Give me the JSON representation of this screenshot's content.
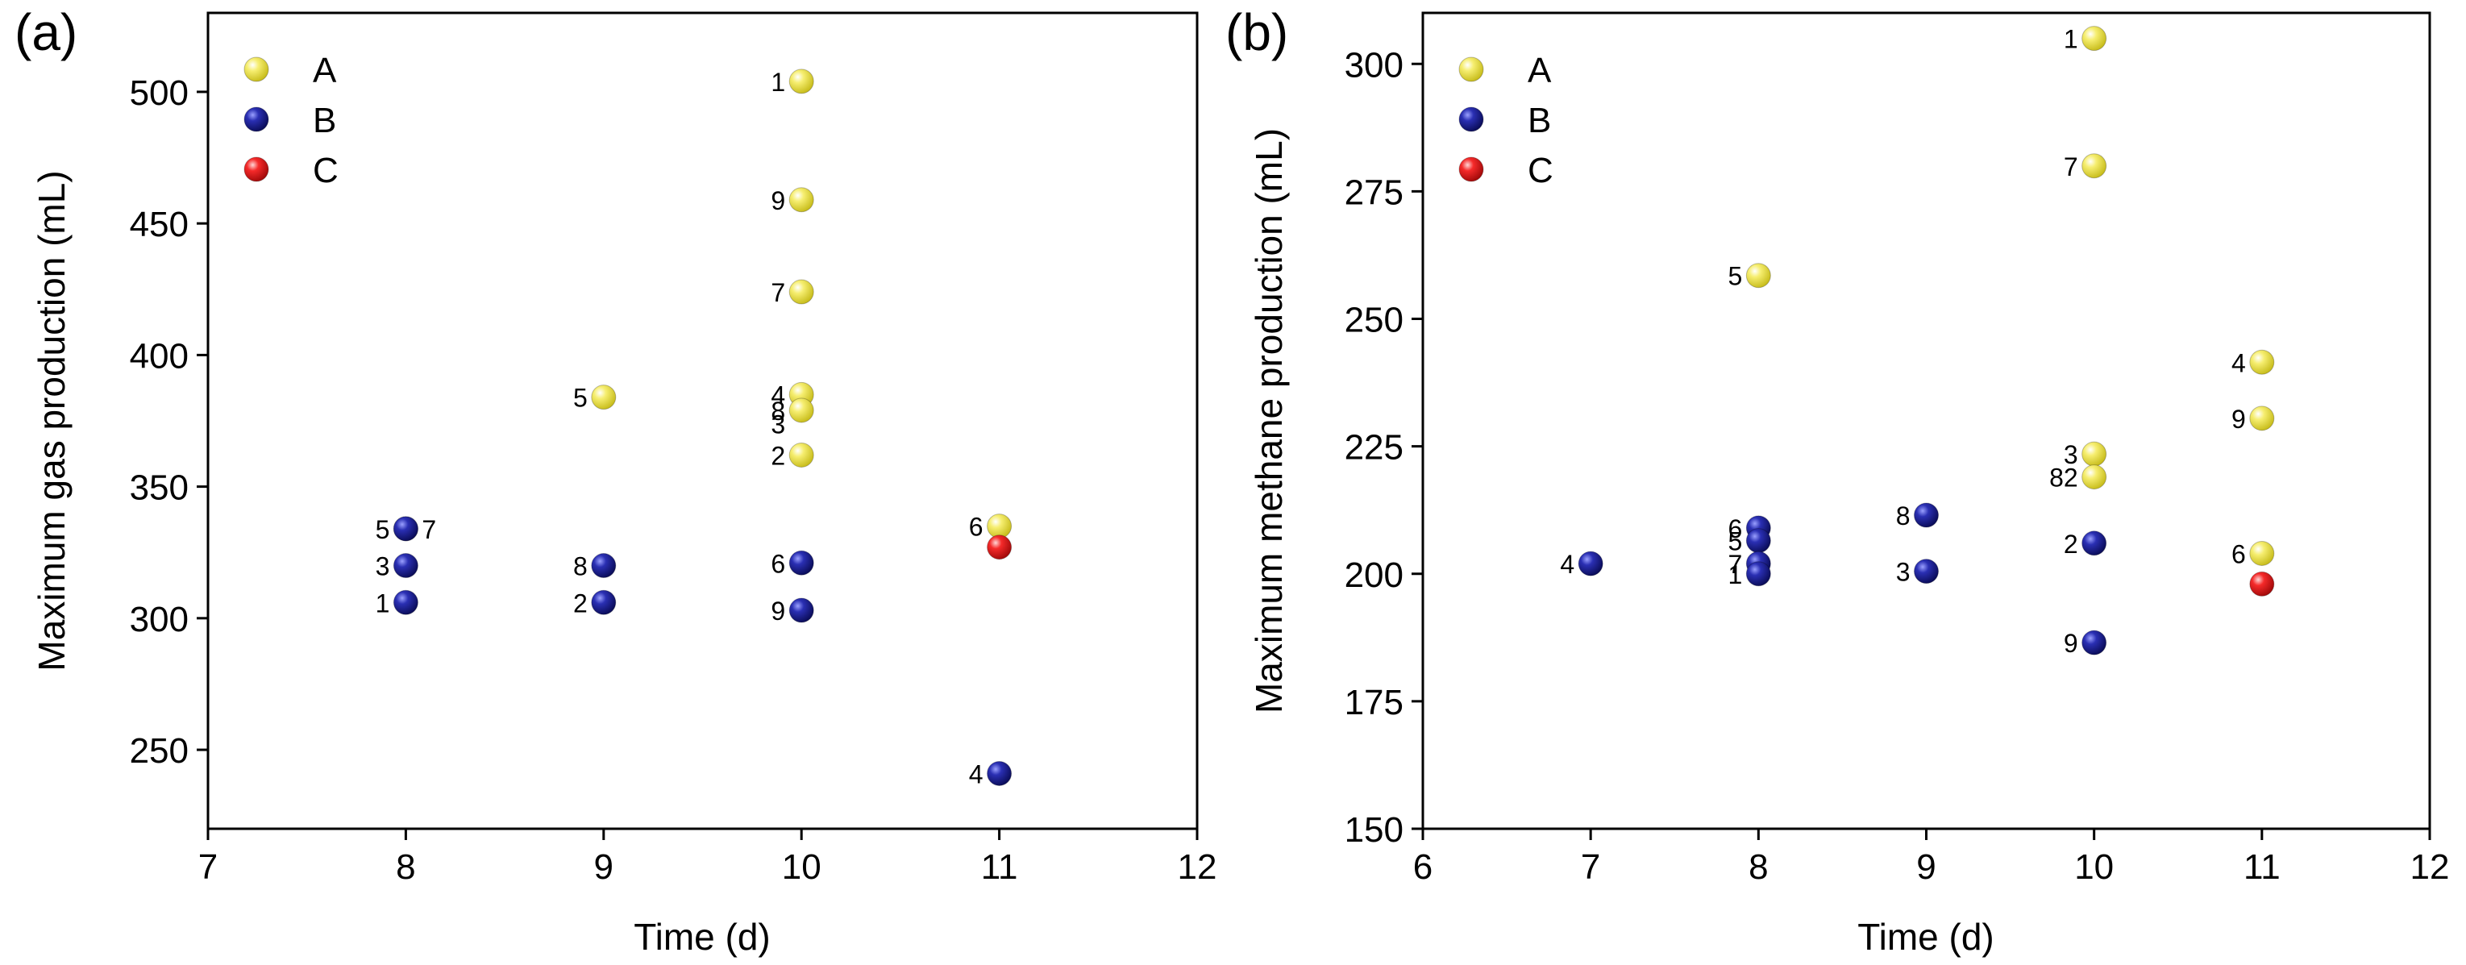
{
  "chart_data": [
    {
      "panel": "(a)",
      "type": "scatter",
      "xlabel": "Time (d)",
      "ylabel": "Maximum gas production (mL)",
      "xlim": [
        7,
        12
      ],
      "ylim": [
        220,
        530
      ],
      "xticks": [
        7,
        8,
        9,
        10,
        11,
        12
      ],
      "yticks": [
        250,
        300,
        350,
        400,
        450,
        500
      ],
      "legend": [
        {
          "name": "A",
          "color": "#e6de3c"
        },
        {
          "name": "B",
          "color": "#1b1f8f"
        },
        {
          "name": "C",
          "color": "#e01a1a"
        }
      ],
      "series": [
        {
          "name": "A",
          "points": [
            {
              "x": 10,
              "y": 504,
              "label": "1"
            },
            {
              "x": 10,
              "y": 459,
              "label": "9"
            },
            {
              "x": 10,
              "y": 424,
              "label": "7"
            },
            {
              "x": 10,
              "y": 385,
              "label": "4"
            },
            {
              "x": 10,
              "y": 379,
              "label": "8"
            },
            {
              "x": 10,
              "y": 362,
              "label": "2"
            },
            {
              "x": 10,
              "y": 374,
              "label": "3",
              "marker": false
            },
            {
              "x": 9,
              "y": 384,
              "label": "5"
            },
            {
              "x": 11,
              "y": 335,
              "label": "6"
            }
          ]
        },
        {
          "name": "B",
          "points": [
            {
              "x": 8,
              "y": 334,
              "label": "5"
            },
            {
              "x": 8,
              "y": 334,
              "label": "7",
              "label_side": "right"
            },
            {
              "x": 8,
              "y": 320,
              "label": "3"
            },
            {
              "x": 8,
              "y": 306,
              "label": "1"
            },
            {
              "x": 9,
              "y": 320,
              "label": "8"
            },
            {
              "x": 9,
              "y": 306,
              "label": "2"
            },
            {
              "x": 10,
              "y": 321,
              "label": "6"
            },
            {
              "x": 10,
              "y": 303,
              "label": "9"
            },
            {
              "x": 11,
              "y": 241,
              "label": "4"
            }
          ]
        },
        {
          "name": "C",
          "points": [
            {
              "x": 11,
              "y": 327,
              "label": ""
            }
          ]
        }
      ]
    },
    {
      "panel": "(b)",
      "type": "scatter",
      "xlabel": "Time (d)",
      "ylabel": "Maximum methane production (mL)",
      "xlim": [
        6,
        12
      ],
      "ylim": [
        150,
        310
      ],
      "xticks": [
        6,
        7,
        8,
        9,
        10,
        11,
        12
      ],
      "yticks": [
        150,
        175,
        200,
        225,
        250,
        275,
        300
      ],
      "legend": [
        {
          "name": "A",
          "color": "#e6de3c"
        },
        {
          "name": "B",
          "color": "#1b1f8f"
        },
        {
          "name": "C",
          "color": "#e01a1a"
        }
      ],
      "series": [
        {
          "name": "A",
          "points": [
            {
              "x": 10,
              "y": 305,
              "label": "1"
            },
            {
              "x": 10,
              "y": 280,
              "label": "7"
            },
            {
              "x": 8,
              "y": 258.5,
              "label": "5"
            },
            {
              "x": 11,
              "y": 241.5,
              "label": "4"
            },
            {
              "x": 11,
              "y": 230.5,
              "label": "9"
            },
            {
              "x": 10,
              "y": 223.5,
              "label": "3"
            },
            {
              "x": 10,
              "y": 219,
              "label": "82"
            },
            {
              "x": 11,
              "y": 204,
              "label": "6"
            }
          ]
        },
        {
          "name": "B",
          "points": [
            {
              "x": 7,
              "y": 202,
              "label": "4"
            },
            {
              "x": 8,
              "y": 209,
              "label": "6"
            },
            {
              "x": 8,
              "y": 206.5,
              "label": "5"
            },
            {
              "x": 8,
              "y": 202,
              "label": "7"
            },
            {
              "x": 8,
              "y": 200,
              "label": "1"
            },
            {
              "x": 9,
              "y": 211.5,
              "label": "8"
            },
            {
              "x": 9,
              "y": 200.5,
              "label": "3"
            },
            {
              "x": 10,
              "y": 206,
              "label": "2"
            },
            {
              "x": 10,
              "y": 186.5,
              "label": "9"
            }
          ]
        },
        {
          "name": "C",
          "points": [
            {
              "x": 11,
              "y": 198,
              "label": ""
            }
          ]
        }
      ]
    }
  ]
}
